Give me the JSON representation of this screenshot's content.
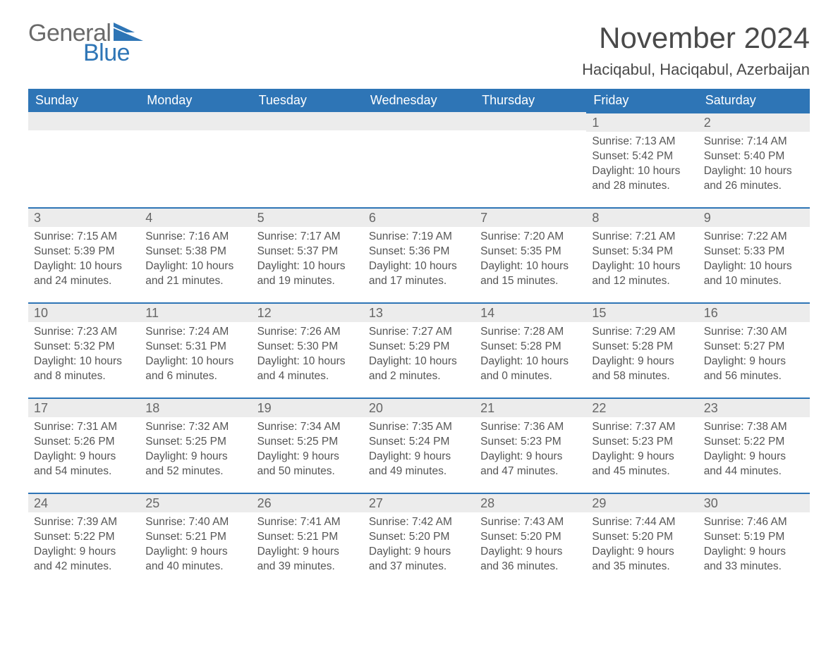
{
  "logo": {
    "word1": "General",
    "word2": "Blue",
    "shape_color": "#2e75b6"
  },
  "title": "November 2024",
  "location": "Haciqabul, Haciqabul, Azerbaijan",
  "colors": {
    "header_blue": "#2e75b6",
    "light_gray": "#ececec",
    "text": "#555555",
    "daynum": "#666666"
  },
  "calendar": {
    "columns": [
      "Sunday",
      "Monday",
      "Tuesday",
      "Wednesday",
      "Thursday",
      "Friday",
      "Saturday"
    ],
    "weeks": [
      [
        null,
        null,
        null,
        null,
        null,
        {
          "n": "1",
          "sunrise": "Sunrise: 7:13 AM",
          "sunset": "Sunset: 5:42 PM",
          "day1": "Daylight: 10 hours",
          "day2": "and 28 minutes."
        },
        {
          "n": "2",
          "sunrise": "Sunrise: 7:14 AM",
          "sunset": "Sunset: 5:40 PM",
          "day1": "Daylight: 10 hours",
          "day2": "and 26 minutes."
        }
      ],
      [
        {
          "n": "3",
          "sunrise": "Sunrise: 7:15 AM",
          "sunset": "Sunset: 5:39 PM",
          "day1": "Daylight: 10 hours",
          "day2": "and 24 minutes."
        },
        {
          "n": "4",
          "sunrise": "Sunrise: 7:16 AM",
          "sunset": "Sunset: 5:38 PM",
          "day1": "Daylight: 10 hours",
          "day2": "and 21 minutes."
        },
        {
          "n": "5",
          "sunrise": "Sunrise: 7:17 AM",
          "sunset": "Sunset: 5:37 PM",
          "day1": "Daylight: 10 hours",
          "day2": "and 19 minutes."
        },
        {
          "n": "6",
          "sunrise": "Sunrise: 7:19 AM",
          "sunset": "Sunset: 5:36 PM",
          "day1": "Daylight: 10 hours",
          "day2": "and 17 minutes."
        },
        {
          "n": "7",
          "sunrise": "Sunrise: 7:20 AM",
          "sunset": "Sunset: 5:35 PM",
          "day1": "Daylight: 10 hours",
          "day2": "and 15 minutes."
        },
        {
          "n": "8",
          "sunrise": "Sunrise: 7:21 AM",
          "sunset": "Sunset: 5:34 PM",
          "day1": "Daylight: 10 hours",
          "day2": "and 12 minutes."
        },
        {
          "n": "9",
          "sunrise": "Sunrise: 7:22 AM",
          "sunset": "Sunset: 5:33 PM",
          "day1": "Daylight: 10 hours",
          "day2": "and 10 minutes."
        }
      ],
      [
        {
          "n": "10",
          "sunrise": "Sunrise: 7:23 AM",
          "sunset": "Sunset: 5:32 PM",
          "day1": "Daylight: 10 hours",
          "day2": "and 8 minutes."
        },
        {
          "n": "11",
          "sunrise": "Sunrise: 7:24 AM",
          "sunset": "Sunset: 5:31 PM",
          "day1": "Daylight: 10 hours",
          "day2": "and 6 minutes."
        },
        {
          "n": "12",
          "sunrise": "Sunrise: 7:26 AM",
          "sunset": "Sunset: 5:30 PM",
          "day1": "Daylight: 10 hours",
          "day2": "and 4 minutes."
        },
        {
          "n": "13",
          "sunrise": "Sunrise: 7:27 AM",
          "sunset": "Sunset: 5:29 PM",
          "day1": "Daylight: 10 hours",
          "day2": "and 2 minutes."
        },
        {
          "n": "14",
          "sunrise": "Sunrise: 7:28 AM",
          "sunset": "Sunset: 5:28 PM",
          "day1": "Daylight: 10 hours",
          "day2": "and 0 minutes."
        },
        {
          "n": "15",
          "sunrise": "Sunrise: 7:29 AM",
          "sunset": "Sunset: 5:28 PM",
          "day1": "Daylight: 9 hours",
          "day2": "and 58 minutes."
        },
        {
          "n": "16",
          "sunrise": "Sunrise: 7:30 AM",
          "sunset": "Sunset: 5:27 PM",
          "day1": "Daylight: 9 hours",
          "day2": "and 56 minutes."
        }
      ],
      [
        {
          "n": "17",
          "sunrise": "Sunrise: 7:31 AM",
          "sunset": "Sunset: 5:26 PM",
          "day1": "Daylight: 9 hours",
          "day2": "and 54 minutes."
        },
        {
          "n": "18",
          "sunrise": "Sunrise: 7:32 AM",
          "sunset": "Sunset: 5:25 PM",
          "day1": "Daylight: 9 hours",
          "day2": "and 52 minutes."
        },
        {
          "n": "19",
          "sunrise": "Sunrise: 7:34 AM",
          "sunset": "Sunset: 5:25 PM",
          "day1": "Daylight: 9 hours",
          "day2": "and 50 minutes."
        },
        {
          "n": "20",
          "sunrise": "Sunrise: 7:35 AM",
          "sunset": "Sunset: 5:24 PM",
          "day1": "Daylight: 9 hours",
          "day2": "and 49 minutes."
        },
        {
          "n": "21",
          "sunrise": "Sunrise: 7:36 AM",
          "sunset": "Sunset: 5:23 PM",
          "day1": "Daylight: 9 hours",
          "day2": "and 47 minutes."
        },
        {
          "n": "22",
          "sunrise": "Sunrise: 7:37 AM",
          "sunset": "Sunset: 5:23 PM",
          "day1": "Daylight: 9 hours",
          "day2": "and 45 minutes."
        },
        {
          "n": "23",
          "sunrise": "Sunrise: 7:38 AM",
          "sunset": "Sunset: 5:22 PM",
          "day1": "Daylight: 9 hours",
          "day2": "and 44 minutes."
        }
      ],
      [
        {
          "n": "24",
          "sunrise": "Sunrise: 7:39 AM",
          "sunset": "Sunset: 5:22 PM",
          "day1": "Daylight: 9 hours",
          "day2": "and 42 minutes."
        },
        {
          "n": "25",
          "sunrise": "Sunrise: 7:40 AM",
          "sunset": "Sunset: 5:21 PM",
          "day1": "Daylight: 9 hours",
          "day2": "and 40 minutes."
        },
        {
          "n": "26",
          "sunrise": "Sunrise: 7:41 AM",
          "sunset": "Sunset: 5:21 PM",
          "day1": "Daylight: 9 hours",
          "day2": "and 39 minutes."
        },
        {
          "n": "27",
          "sunrise": "Sunrise: 7:42 AM",
          "sunset": "Sunset: 5:20 PM",
          "day1": "Daylight: 9 hours",
          "day2": "and 37 minutes."
        },
        {
          "n": "28",
          "sunrise": "Sunrise: 7:43 AM",
          "sunset": "Sunset: 5:20 PM",
          "day1": "Daylight: 9 hours",
          "day2": "and 36 minutes."
        },
        {
          "n": "29",
          "sunrise": "Sunrise: 7:44 AM",
          "sunset": "Sunset: 5:20 PM",
          "day1": "Daylight: 9 hours",
          "day2": "and 35 minutes."
        },
        {
          "n": "30",
          "sunrise": "Sunrise: 7:46 AM",
          "sunset": "Sunset: 5:19 PM",
          "day1": "Daylight: 9 hours",
          "day2": "and 33 minutes."
        }
      ]
    ]
  }
}
